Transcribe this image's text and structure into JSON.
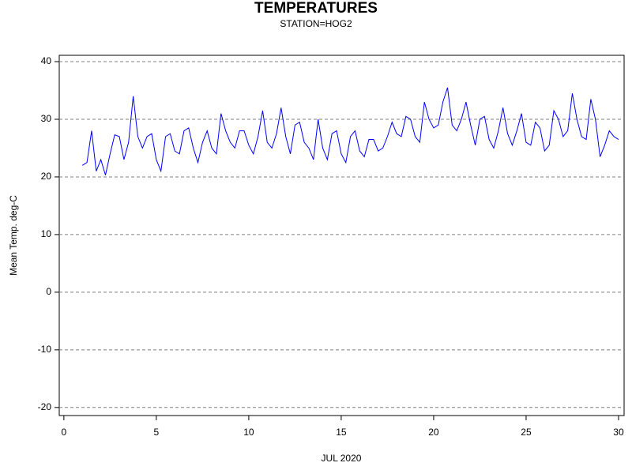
{
  "chart_data": {
    "type": "line",
    "title": "TEMPERATURES",
    "subtitle": "STATION=HOG2",
    "x_label": "JUL 2020",
    "y_label": "Mean Temp. deg-C",
    "xlim": [
      -0.25,
      30.3
    ],
    "xticks": [
      0,
      5,
      10,
      15,
      20,
      25,
      30
    ],
    "ylim": [
      -21.4,
      41.1
    ],
    "yticks": [
      -20,
      -10,
      0,
      10,
      20,
      30,
      40
    ],
    "grid": true,
    "x": [
      1,
      1.25,
      1.5,
      1.75,
      2,
      2.25,
      2.5,
      2.75,
      3,
      3.25,
      3.5,
      3.75,
      4,
      4.25,
      4.5,
      4.75,
      5,
      5.25,
      5.5,
      5.75,
      6,
      6.25,
      6.5,
      6.75,
      7,
      7.25,
      7.5,
      7.75,
      8,
      8.25,
      8.5,
      8.75,
      9,
      9.25,
      9.5,
      9.75,
      10,
      10.25,
      10.5,
      10.75,
      11,
      11.25,
      11.5,
      11.75,
      12,
      12.25,
      12.5,
      12.75,
      13,
      13.25,
      13.5,
      13.75,
      14,
      14.25,
      14.5,
      14.75,
      15,
      15.25,
      15.5,
      15.75,
      16,
      16.25,
      16.5,
      16.75,
      17,
      17.25,
      17.5,
      17.75,
      18,
      18.25,
      18.5,
      18.75,
      19,
      19.25,
      19.5,
      19.75,
      20,
      20.25,
      20.5,
      20.75,
      21,
      21.25,
      21.5,
      21.75,
      22,
      22.25,
      22.5,
      22.75,
      23,
      23.25,
      23.5,
      23.75,
      24,
      24.25,
      24.5,
      24.75,
      25,
      25.25,
      25.5,
      25.75,
      26,
      26.25,
      26.5,
      26.75,
      27,
      27.25,
      27.5,
      27.75,
      28,
      28.25,
      28.5,
      28.75,
      29,
      29.25,
      29.5,
      29.75,
      30
    ],
    "series": [
      {
        "name": "Mean Temp",
        "color": "#0000ff",
        "values": [
          22,
          22.5,
          28,
          21,
          23,
          20.3,
          24,
          27.3,
          27,
          23,
          26,
          34,
          27,
          25,
          27,
          27.5,
          23,
          21,
          27,
          27.5,
          24.5,
          24,
          28,
          28.5,
          25,
          22.5,
          26,
          28,
          25,
          24,
          31,
          28,
          26,
          25,
          28,
          28,
          25.5,
          24,
          27,
          31.5,
          26,
          25,
          27.5,
          32,
          27,
          24,
          29,
          29.5,
          26,
          25,
          23,
          30,
          25,
          23,
          27.5,
          28,
          24,
          22.5,
          27,
          28,
          24.5,
          23.5,
          26.5,
          26.5,
          24.5,
          25,
          27,
          29.5,
          27.5,
          27,
          30.5,
          30,
          27,
          26,
          33,
          30,
          28.5,
          29,
          33,
          35.5,
          29,
          28,
          30,
          33,
          29,
          25.5,
          30,
          30.5,
          26.5,
          25,
          28,
          32,
          27.5,
          25.5,
          28,
          31,
          26,
          25.5,
          29.5,
          28.5,
          24.5,
          25.5,
          31.5,
          30,
          27,
          28,
          34.5,
          30,
          27,
          26.5,
          33.5,
          30,
          23.5,
          25.5,
          28,
          27,
          26.5
        ]
      }
    ]
  }
}
